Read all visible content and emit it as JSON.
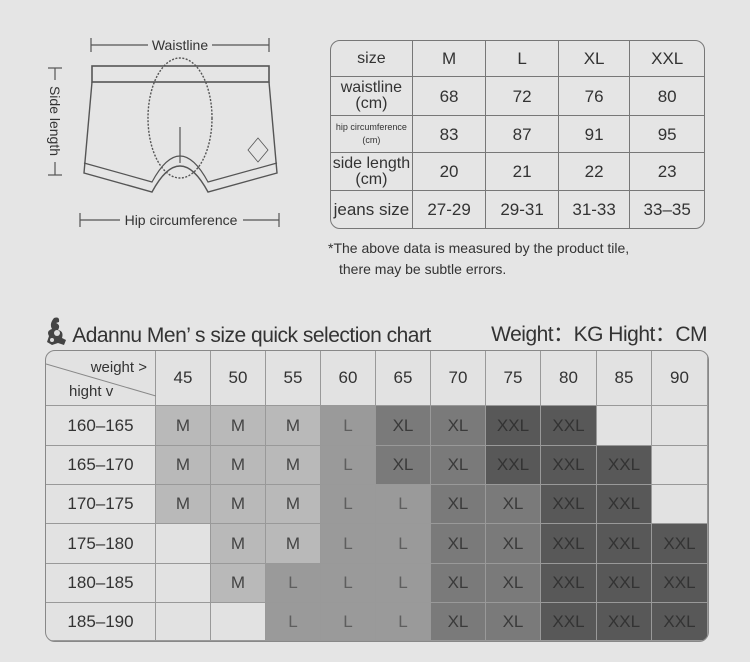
{
  "diagram": {
    "waistline_label": "Waistline",
    "side_length_label": "Side length",
    "hip_label": "Hip circumference"
  },
  "size_table": {
    "header": [
      "size",
      "M",
      "L",
      "XL",
      "XXL"
    ],
    "rows": [
      {
        "label": "waistline",
        "unit": "(cm)",
        "values": [
          "68",
          "72",
          "76",
          "80"
        ]
      },
      {
        "label": "hip circumference",
        "unit": "(cm)",
        "values": [
          "83",
          "87",
          "91",
          "95"
        ]
      },
      {
        "label": "side length",
        "unit": "(cm)",
        "values": [
          "20",
          "21",
          "22",
          "23"
        ]
      },
      {
        "label": "jeans size",
        "unit": "",
        "values": [
          "27-29",
          "29-31",
          "31-33",
          "33–35"
        ]
      }
    ]
  },
  "note": {
    "line1": "*The above data is measured by the product tile,",
    "line2": "there may be subtle errors."
  },
  "chart": {
    "icon": "brand-mascot-icon",
    "title": "Adannu Men’ s size quick selection chart",
    "units": "Weight：KG  Hight：CM",
    "corner_top": "weight >",
    "corner_bottom": "hight v",
    "weights": [
      "45",
      "50",
      "55",
      "60",
      "65",
      "70",
      "75",
      "80",
      "85",
      "90"
    ],
    "heights": [
      "160–165",
      "165–170",
      "170–175",
      "175–180",
      "180–185",
      "185–190"
    ],
    "sizes": [
      [
        "M",
        "M",
        "M",
        "L",
        "XL",
        "XL",
        "XXL",
        "XXL",
        "",
        ""
      ],
      [
        "M",
        "M",
        "M",
        "L",
        "XL",
        "XL",
        "XXL",
        "XXL",
        "XXL",
        ""
      ],
      [
        "M",
        "M",
        "M",
        "L",
        "L",
        "XL",
        "XL",
        "XXL",
        "XXL",
        ""
      ],
      [
        "",
        "M",
        "M",
        "L",
        "L",
        "XL",
        "XL",
        "XXL",
        "XXL",
        "XXL"
      ],
      [
        "",
        "M",
        "L",
        "L",
        "L",
        "XL",
        "XL",
        "XXL",
        "XXL",
        "XXL"
      ],
      [
        "",
        "",
        "L",
        "L",
        "L",
        "XL",
        "XL",
        "XXL",
        "XXL",
        "XXL"
      ]
    ],
    "colors": {
      "M": "#b9b9b9",
      "L": "#9a9a9a",
      "XL": "#7a7a7a",
      "XXL": "#585858",
      "empty": "#e2e2e2"
    }
  }
}
